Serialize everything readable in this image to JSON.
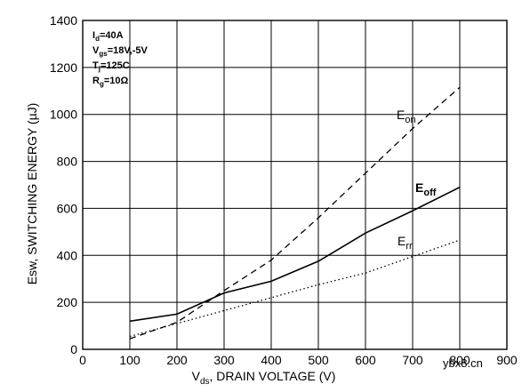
{
  "chart_data": {
    "type": "line",
    "title": "",
    "xlabel": "V",
    "xlabel_sub": "ds",
    "xlabel_rest": ", DRAIN VOLTAGE (V)",
    "ylabel": "Esw, SWITCHING ENERGY (µJ)",
    "xlim": [
      0,
      900
    ],
    "ylim": [
      0,
      1400
    ],
    "xticks": [
      0,
      100,
      200,
      300,
      400,
      500,
      600,
      700,
      800,
      900
    ],
    "yticks": [
      0,
      200,
      400,
      600,
      800,
      1000,
      1200,
      1400
    ],
    "grid": true,
    "series": [
      {
        "name": "E",
        "name_sub": "on",
        "style": "dashed",
        "x": [
          100,
          200,
          300,
          400,
          500,
          600,
          700,
          800
        ],
        "y": [
          45,
          115,
          250,
          380,
          560,
          750,
          940,
          1115
        ]
      },
      {
        "name": "E",
        "name_sub": "off",
        "style": "solid",
        "x": [
          100,
          200,
          300,
          400,
          500,
          600,
          700,
          800
        ],
        "y": [
          120,
          150,
          240,
          290,
          375,
          495,
          590,
          690
        ]
      },
      {
        "name": "E",
        "name_sub": "rr",
        "style": "dotted",
        "x": [
          100,
          200,
          300,
          400,
          500,
          600,
          700,
          800
        ],
        "y": [
          55,
          110,
          165,
          220,
          275,
          325,
          395,
          465
        ]
      }
    ],
    "conditions": [
      {
        "main": "I",
        "sub": "d",
        "rest": "=40A"
      },
      {
        "main": "V",
        "sub": "gs",
        "rest": "=18V,-5V"
      },
      {
        "main": "T",
        "sub": "j",
        "rest": "=125C"
      },
      {
        "main": "R",
        "sub": "g",
        "rest": "=10Ω"
      }
    ]
  },
  "watermark": "ybx8.cn"
}
